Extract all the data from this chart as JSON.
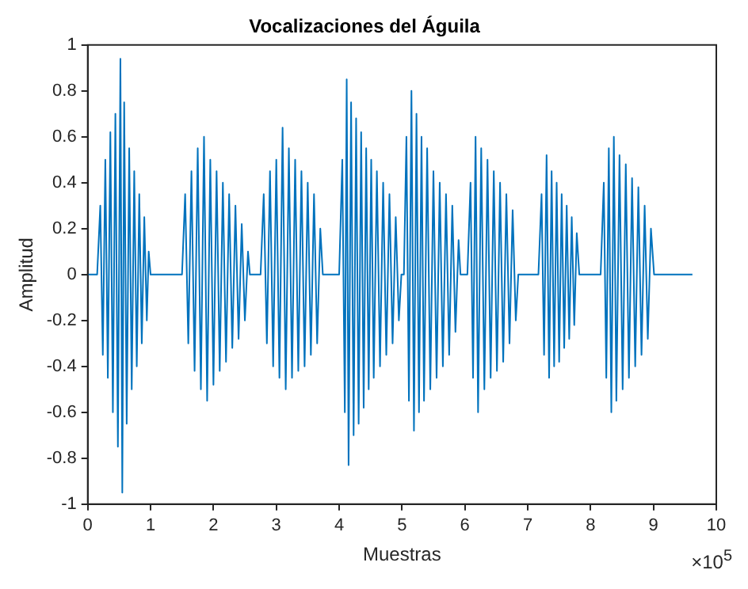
{
  "chart_data": {
    "type": "line",
    "title": "Vocalizaciones del Águila",
    "xlabel": "Muestras",
    "ylabel": "Amplitud",
    "annotations": [
      "×10$^{5}$"
    ],
    "xlim": [
      0,
      10
    ],
    "ylim": [
      -1,
      1
    ],
    "xticks": [
      0,
      1,
      2,
      3,
      4,
      5,
      6,
      7,
      8,
      9,
      10
    ],
    "yticks": [
      -1,
      -0.8,
      -0.6,
      -0.4,
      -0.2,
      0,
      0.2,
      0.4,
      0.6,
      0.8,
      1
    ],
    "series": [
      {
        "color": "#0072bd",
        "x": [
          0,
          0.15,
          0.2,
          0.24,
          0.28,
          0.32,
          0.36,
          0.4,
          0.44,
          0.48,
          0.52,
          0.55,
          0.58,
          0.62,
          0.66,
          0.7,
          0.74,
          0.78,
          0.82,
          0.86,
          0.9,
          0.94,
          0.97,
          1,
          1.5,
          1.55,
          1.6,
          1.65,
          1.7,
          1.75,
          1.8,
          1.85,
          1.9,
          1.95,
          2,
          2.05,
          2.1,
          2.15,
          2.2,
          2.25,
          2.3,
          2.35,
          2.4,
          2.45,
          2.5,
          2.55,
          2.58,
          2.75,
          2.8,
          2.85,
          2.9,
          2.95,
          3,
          3.05,
          3.1,
          3.15,
          3.2,
          3.25,
          3.3,
          3.35,
          3.4,
          3.45,
          3.5,
          3.55,
          3.6,
          3.65,
          3.7,
          3.74,
          4,
          4.05,
          4.09,
          4.12,
          4.15,
          4.19,
          4.23,
          4.27,
          4.31,
          4.35,
          4.39,
          4.43,
          4.47,
          4.51,
          4.55,
          4.6,
          4.65,
          4.7,
          4.75,
          4.8,
          4.85,
          4.9,
          4.95,
          4.99,
          5.03,
          5.07,
          5.11,
          5.15,
          5.19,
          5.23,
          5.27,
          5.31,
          5.35,
          5.4,
          5.45,
          5.5,
          5.55,
          5.6,
          5.65,
          5.7,
          5.75,
          5.8,
          5.85,
          5.9,
          5.93,
          6.04,
          6.09,
          6.13,
          6.17,
          6.21,
          6.26,
          6.31,
          6.36,
          6.41,
          6.46,
          6.51,
          6.56,
          6.61,
          6.66,
          6.71,
          6.76,
          6.81,
          6.85,
          7.17,
          7.22,
          7.26,
          7.3,
          7.34,
          7.38,
          7.42,
          7.46,
          7.5,
          7.54,
          7.58,
          7.62,
          7.66,
          7.7,
          7.74,
          7.78,
          7.82,
          8.16,
          8.21,
          8.25,
          8.29,
          8.33,
          8.37,
          8.41,
          8.46,
          8.51,
          8.56,
          8.61,
          8.66,
          8.71,
          8.76,
          8.81,
          8.86,
          8.91,
          8.96,
          9.01,
          9.62
        ],
        "values": [
          0,
          0,
          0.3,
          -0.35,
          0.5,
          -0.45,
          0.62,
          -0.6,
          0.7,
          -0.75,
          0.94,
          -0.95,
          0.75,
          -0.65,
          0.55,
          -0.5,
          0.45,
          -0.4,
          0.35,
          -0.3,
          0.25,
          -0.2,
          0.1,
          0,
          0,
          0.35,
          -0.3,
          0.45,
          -0.42,
          0.55,
          -0.5,
          0.6,
          -0.55,
          0.5,
          -0.48,
          0.45,
          -0.42,
          0.4,
          -0.38,
          0.35,
          -0.32,
          0.3,
          -0.28,
          0.22,
          -0.2,
          0.1,
          0,
          0,
          0.35,
          -0.3,
          0.45,
          -0.4,
          0.5,
          -0.45,
          0.64,
          -0.5,
          0.55,
          -0.45,
          0.5,
          -0.42,
          0.45,
          -0.4,
          0.4,
          -0.35,
          0.35,
          -0.3,
          0.2,
          0,
          0,
          0.5,
          -0.6,
          0.85,
          -0.83,
          0.75,
          -0.7,
          0.68,
          -0.65,
          0.62,
          -0.58,
          0.55,
          -0.5,
          0.5,
          -0.45,
          0.45,
          -0.4,
          0.4,
          -0.35,
          0.35,
          -0.3,
          0.25,
          -0.2,
          0,
          0,
          0.6,
          -0.55,
          0.8,
          -0.68,
          0.7,
          -0.6,
          0.6,
          -0.55,
          0.55,
          -0.5,
          0.45,
          -0.45,
          0.4,
          -0.4,
          0.35,
          -0.35,
          0.3,
          -0.25,
          0.15,
          0,
          0,
          0.4,
          -0.45,
          0.6,
          -0.6,
          0.55,
          -0.5,
          0.5,
          -0.45,
          0.45,
          -0.42,
          0.4,
          -0.38,
          0.35,
          -0.3,
          0.28,
          -0.2,
          0,
          0,
          0.35,
          -0.35,
          0.52,
          -0.45,
          0.45,
          -0.4,
          0.4,
          -0.38,
          0.35,
          -0.32,
          0.3,
          -0.28,
          0.25,
          -0.22,
          0.18,
          0,
          0,
          0.4,
          -0.45,
          0.55,
          -0.6,
          0.6,
          -0.55,
          0.52,
          -0.5,
          0.48,
          -0.45,
          0.42,
          -0.4,
          0.38,
          -0.35,
          0.3,
          -0.28,
          0.2,
          0,
          0
        ]
      }
    ]
  }
}
